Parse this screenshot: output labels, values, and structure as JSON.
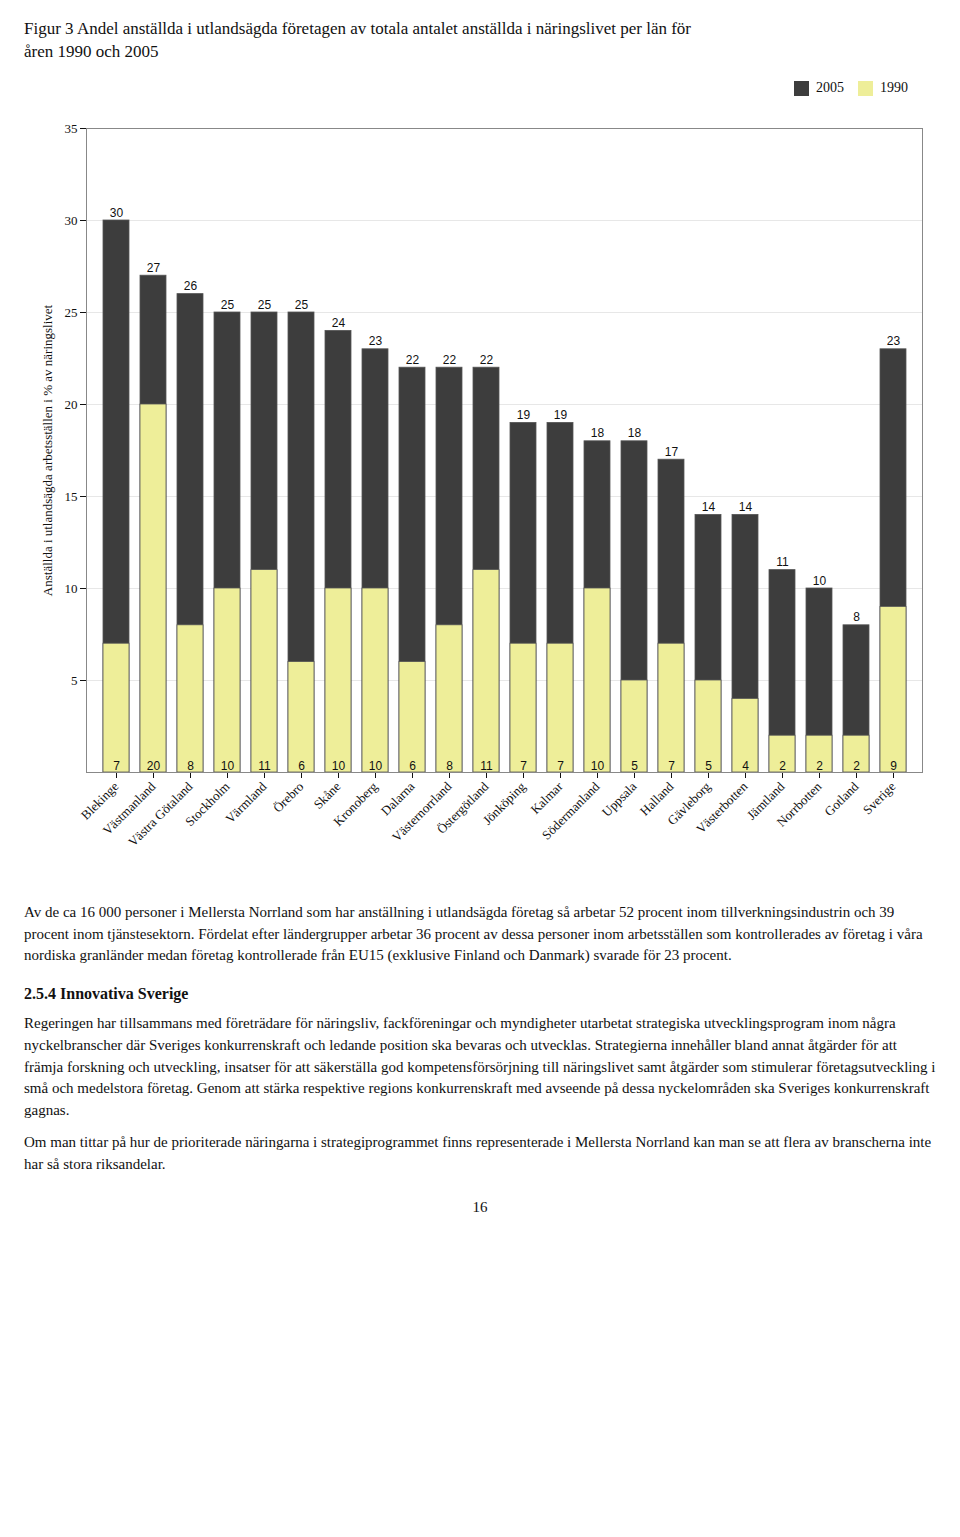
{
  "chart_data": {
    "type": "bar",
    "title": "Figur 3 Andel anställda i utlandsägda företagen av totala antalet anställda i näringslivet per län för\nåren 1990 och 2005",
    "categories": [
      "Blekinge",
      "Västmanland",
      "Västra Götaland",
      "Stockholm",
      "Värmland",
      "Örebro",
      "Skåne",
      "Kronoberg",
      "Dalarna",
      "Västernorrland",
      "Östergötland",
      "Jönköping",
      "Kalmar",
      "Södermanland",
      "Uppsala",
      "Halland",
      "Gävleborg",
      "Västerbotten",
      "Jämtland",
      "Norrbotten",
      "Gotland",
      "Sverige"
    ],
    "series": [
      {
        "name": "2005",
        "color": "#3d3d3d",
        "values": [
          30,
          27,
          26,
          25,
          25,
          25,
          24,
          23,
          22,
          22,
          22,
          19,
          19,
          18,
          18,
          17,
          14,
          14,
          11,
          10,
          8,
          23
        ]
      },
      {
        "name": "1990",
        "color": "#eeee99",
        "values": [
          7,
          20,
          8,
          10,
          11,
          6,
          10,
          10,
          6,
          8,
          11,
          7,
          7,
          10,
          5,
          7,
          5,
          4,
          2,
          2,
          2,
          9
        ]
      }
    ],
    "stacked": false,
    "ylabel": "Anställda i utlandsägda arbetsställen i % av näringslivet",
    "ylim": [
      0,
      35
    ],
    "yticks": [
      5,
      10,
      15,
      20,
      25,
      30,
      35
    ],
    "grid": true,
    "legend": "upper right",
    "data_labels": true
  },
  "body_text": "Av de ca 16 000 personer i Mellersta Norrland som har anställning i utlandsägda företag så arbetar 52 procent inom tillverkningsindustrin och 39 procent inom tjänstesektorn. Fördelat efter ländergrupper arbetar 36 procent av dessa personer inom arbetsställen som kontrollerades av företag i våra nordiska granländer medan företag kontrollerade från EU15 (exklusive Finland och Danmark) svarade för 23 procent.",
  "section_title": "2.5.4 Innovativa Sverige",
  "body_text2": "Regeringen har tillsammans med företrädare för näringsliv, fackföreningar och myndigheter utarbetat strategiska utvecklingsprogram inom några nyckelbranscher där Sveriges konkurrenskraft och ledande position ska bevaras och utvecklas. Strategierna innehåller bland annat åtgärder för att främja forskning och utveckling, insatser för att säkerställa god kompetensförsörjning till näringslivet samt åtgärder som stimulerar företagsutveckling i små och medelstora företag. Genom att stärka respektive regions konkurrenskraft med avseende på dessa nyckelområden ska Sveriges konkurrenskraft gagnas.",
  "body_text3": "Om man tittar på hur de prioriterade näringarna i strategiprogrammet finns representerade i Mellersta Norrland kan man se att flera av branscherna inte har så stora riksandelar.",
  "page_number": "16"
}
